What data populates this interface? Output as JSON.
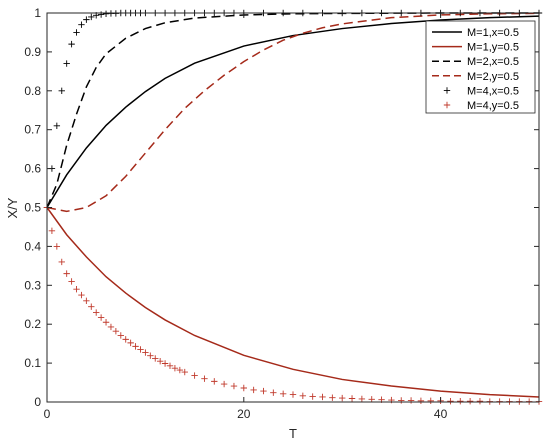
{
  "chart_data": {
    "type": "line",
    "title": "",
    "xlabel": "T",
    "ylabel": "X/Y",
    "xlim": [
      0,
      50
    ],
    "ylim": [
      0,
      1
    ],
    "x_ticks": [
      0,
      20,
      40
    ],
    "y_ticks": [
      0,
      0.1,
      0.2,
      0.3,
      0.4,
      0.5,
      0.6,
      0.7,
      0.8,
      0.9,
      1
    ],
    "x_tick_labels": [
      "0",
      "20",
      "40"
    ],
    "y_tick_labels": [
      "0",
      "0.1",
      "0.2",
      "0.3",
      "0.4",
      "0.5",
      "0.6",
      "0.7",
      "0.8",
      "0.9",
      "1"
    ],
    "grid": false,
    "legend_position": "top-right",
    "series": [
      {
        "name": "M=1,x=0.5",
        "color": "#000000",
        "style": "solid",
        "marker": "none",
        "x": [
          0,
          2,
          4,
          6,
          8,
          10,
          12,
          15,
          20,
          25,
          30,
          35,
          40,
          45,
          50
        ],
        "y": [
          0.5,
          0.584,
          0.653,
          0.711,
          0.758,
          0.798,
          0.832,
          0.871,
          0.915,
          0.942,
          0.96,
          0.973,
          0.982,
          0.988,
          0.992
        ]
      },
      {
        "name": "M=1,y=0.5",
        "color": "#a52a1a",
        "style": "solid",
        "marker": "none",
        "x": [
          0,
          2,
          4,
          6,
          8,
          10,
          12,
          15,
          20,
          25,
          30,
          35,
          40,
          45,
          50
        ],
        "y": [
          0.5,
          0.43,
          0.373,
          0.322,
          0.28,
          0.243,
          0.211,
          0.171,
          0.12,
          0.084,
          0.058,
          0.041,
          0.028,
          0.019,
          0.013
        ]
      },
      {
        "name": "M=2,x=0.5",
        "color": "#000000",
        "style": "dashed",
        "marker": "none",
        "x": [
          0,
          1,
          2,
          3,
          4,
          5,
          6,
          8,
          10,
          12,
          15,
          20,
          25,
          30,
          40,
          50
        ],
        "y": [
          0.5,
          0.56,
          0.66,
          0.74,
          0.81,
          0.86,
          0.895,
          0.935,
          0.96,
          0.975,
          0.987,
          0.995,
          0.998,
          0.999,
          1.0,
          1.0
        ]
      },
      {
        "name": "M=2,y=0.5",
        "color": "#a52a1a",
        "style": "dashed",
        "marker": "none",
        "x": [
          0,
          2,
          4,
          6,
          8,
          10,
          12,
          14,
          16,
          18,
          20,
          22,
          24,
          26,
          28,
          30,
          35,
          40,
          45,
          50
        ],
        "y": [
          0.5,
          0.49,
          0.5,
          0.53,
          0.58,
          0.64,
          0.7,
          0.755,
          0.8,
          0.84,
          0.875,
          0.905,
          0.93,
          0.948,
          0.962,
          0.972,
          0.988,
          0.995,
          0.998,
          0.999
        ]
      },
      {
        "name": "M=4,x=0.5",
        "color": "#000000",
        "style": "none",
        "marker": "plus",
        "x": [
          0,
          0.5,
          1,
          1.5,
          2,
          2.5,
          3,
          3.5,
          4,
          4.5,
          5,
          5.5,
          6,
          6.5,
          7,
          7.5,
          8,
          8.5,
          9,
          9.5,
          10,
          11,
          12,
          13,
          14,
          15,
          16,
          17,
          18,
          19,
          20,
          22,
          24,
          26,
          28,
          30,
          32,
          34,
          36,
          38,
          40,
          42,
          44,
          46,
          48,
          50
        ],
        "y": [
          0.5,
          0.6,
          0.71,
          0.8,
          0.87,
          0.92,
          0.95,
          0.97,
          0.983,
          0.99,
          0.994,
          0.996,
          0.998,
          0.999,
          0.999,
          1,
          1,
          1,
          1,
          1,
          1,
          1,
          1,
          1,
          1,
          1,
          1,
          1,
          1,
          1,
          1,
          1,
          1,
          1,
          1,
          1,
          1,
          1,
          1,
          1,
          1,
          1,
          1,
          1,
          1,
          1
        ]
      },
      {
        "name": "M=4,y=0.5",
        "color": "#c0392b",
        "style": "none",
        "marker": "plus",
        "x": [
          0,
          0.5,
          1,
          1.5,
          2,
          2.5,
          3,
          3.5,
          4,
          4.5,
          5,
          5.5,
          6,
          6.5,
          7,
          7.5,
          8,
          8.5,
          9,
          9.5,
          10,
          10.5,
          11,
          11.5,
          12,
          12.5,
          13,
          13.5,
          14,
          15,
          16,
          17,
          18,
          19,
          20,
          21,
          22,
          23,
          24,
          25,
          26,
          27,
          28,
          29,
          30,
          31,
          32,
          33,
          34,
          35,
          36,
          37,
          38,
          39,
          40,
          41,
          42,
          43,
          44,
          45,
          46,
          47,
          48,
          49,
          50
        ],
        "y": [
          0.5,
          0.44,
          0.4,
          0.36,
          0.33,
          0.31,
          0.29,
          0.275,
          0.26,
          0.245,
          0.23,
          0.217,
          0.205,
          0.193,
          0.182,
          0.171,
          0.161,
          0.152,
          0.143,
          0.135,
          0.127,
          0.119,
          0.112,
          0.105,
          0.099,
          0.093,
          0.087,
          0.082,
          0.077,
          0.068,
          0.06,
          0.053,
          0.046,
          0.041,
          0.036,
          0.031,
          0.028,
          0.024,
          0.021,
          0.019,
          0.016,
          0.014,
          0.013,
          0.011,
          0.01,
          0.009,
          0.008,
          0.007,
          0.006,
          0.005,
          0.004,
          0.004,
          0.003,
          0.003,
          0.003,
          0.002,
          0.002,
          0.002,
          0.002,
          0.001,
          0.001,
          0.001,
          0.001,
          0.001,
          0.001
        ]
      }
    ]
  }
}
